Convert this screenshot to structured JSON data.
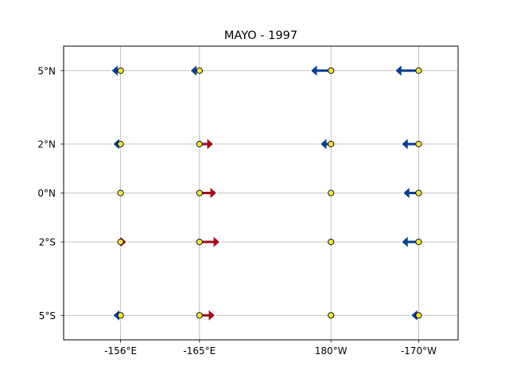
{
  "chart_data": {
    "type": "quiver",
    "title": "MAYO - 1997",
    "x_ticks": [
      "-156°E",
      "-165°E",
      "180°W",
      "-170°W"
    ],
    "y_ticks": [
      "5°N",
      "2°N",
      "0°N",
      "2°S",
      "5°S"
    ],
    "x_positions_deg": [
      156,
      165,
      180,
      190
    ],
    "y_positions_deg": [
      5,
      2,
      0,
      -2,
      -5
    ],
    "xlim_deg": [
      149.5,
      194.5
    ],
    "ylim_deg": [
      -6,
      6
    ],
    "grid": true,
    "colors": {
      "westward": "#0b3d91",
      "eastward": "#a50b1e",
      "station": "#f0e442"
    },
    "stations": [
      {
        "lon": 156,
        "lat": 5,
        "u": -1.2
      },
      {
        "lon": 165,
        "lat": 5,
        "u": -1.2
      },
      {
        "lon": 180,
        "lat": 5,
        "u": -2.6
      },
      {
        "lon": 190,
        "lat": 5,
        "u": -3.0
      },
      {
        "lon": 156,
        "lat": 2,
        "u": -1.0
      },
      {
        "lon": 165,
        "lat": 2,
        "u": 1.8
      },
      {
        "lon": 180,
        "lat": 2,
        "u": -1.4
      },
      {
        "lon": 190,
        "lat": 2,
        "u": -2.2
      },
      {
        "lon": 156,
        "lat": 0,
        "u": 0
      },
      {
        "lon": 165,
        "lat": 0,
        "u": 2.2
      },
      {
        "lon": 180,
        "lat": 0,
        "u": 0
      },
      {
        "lon": 190,
        "lat": 0,
        "u": -2.0
      },
      {
        "lon": 156,
        "lat": -2,
        "u": 0.8
      },
      {
        "lon": 165,
        "lat": -2,
        "u": 2.6
      },
      {
        "lon": 180,
        "lat": -2,
        "u": 0
      },
      {
        "lon": 190,
        "lat": -2,
        "u": -2.2
      },
      {
        "lon": 156,
        "lat": -5,
        "u": -1.0
      },
      {
        "lon": 165,
        "lat": -5,
        "u": 2.0
      },
      {
        "lon": 180,
        "lat": -5,
        "u": 0
      },
      {
        "lon": 190,
        "lat": -5,
        "u": -1.0
      }
    ]
  }
}
